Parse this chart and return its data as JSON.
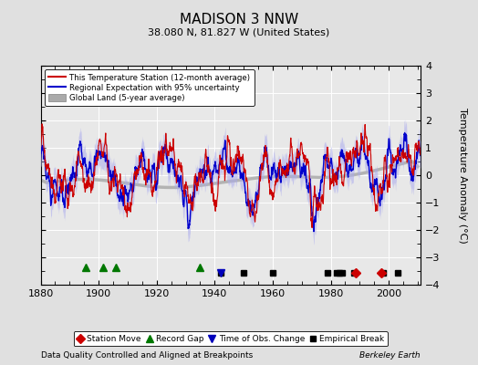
{
  "title": "MADISON 3 NNW",
  "subtitle": "38.080 N, 81.827 W (United States)",
  "xlabel_note": "Data Quality Controlled and Aligned at Breakpoints",
  "credit": "Berkeley Earth",
  "ylabel": "Temperature Anomaly (°C)",
  "xlim": [
    1880,
    2011
  ],
  "ylim": [
    -4,
    4
  ],
  "yticks": [
    -4,
    -3,
    -2,
    -1,
    0,
    1,
    2,
    3,
    4
  ],
  "xticks": [
    1880,
    1900,
    1920,
    1940,
    1960,
    1980,
    2000
  ],
  "bg_color": "#e0e0e0",
  "plot_bg_color": "#e8e8e8",
  "grid_color": "#ffffff",
  "station_line_color": "#cc0000",
  "regional_line_color": "#0000cc",
  "regional_fill_color": "#aaaaee",
  "global_line_color": "#aaaaaa",
  "station_moves": [
    1988.5,
    1997.5
  ],
  "record_gaps": [
    1895.5,
    1901.5,
    1906.0,
    1935.0
  ],
  "obs_changes": [
    1942.0
  ],
  "empirical_breaks": [
    1942.0,
    1950.0,
    1960.0,
    1979.0,
    1982.0,
    1983.0,
    1984.0,
    1988.0,
    1998.0,
    2003.0
  ]
}
